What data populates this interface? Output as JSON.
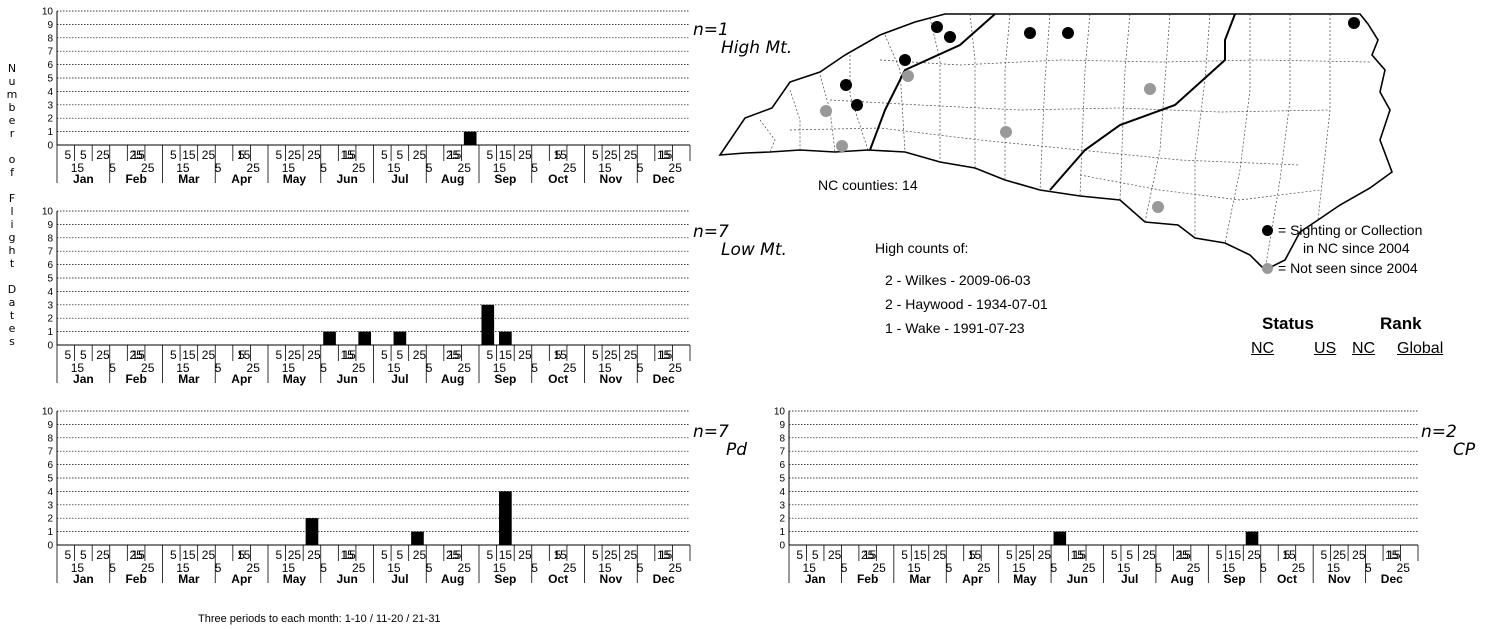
{
  "y_axis_title_letters": [
    "N",
    "u",
    "m",
    "b",
    "e",
    "r",
    "",
    "o",
    "f",
    "",
    "F",
    "l",
    "i",
    "g",
    "h",
    "t",
    "",
    "D",
    "a",
    "t",
    "e",
    "s"
  ],
  "footnote": "Three periods to each month: 1-10 / 11-20 / 21-31",
  "colors": {
    "bar": "#000000",
    "recent_dot": "#000000",
    "old_dot": "#999999",
    "grid": "#000000"
  },
  "tick_row1": [
    "5",
    "25",
    "15",
    "5",
    "25",
    "15",
    "5",
    "25",
    "15",
    "5",
    "25",
    "15",
    "5",
    "25",
    "15",
    "5",
    "25",
    "15"
  ],
  "tick_row2": [
    "15",
    "5",
    "25",
    "15",
    "5",
    "25",
    "15",
    "5",
    "25",
    "15",
    "5",
    "25",
    "15",
    "5",
    "25",
    "15",
    "5",
    "25"
  ],
  "chart_data": [
    {
      "type": "bar",
      "region": "High Mt.",
      "n_label": "n=1",
      "ylim": [
        0,
        10
      ],
      "y_ticks": [
        "0",
        "1",
        "2",
        "3",
        "4",
        "5",
        "6",
        "7",
        "8",
        "9",
        "10"
      ],
      "months": [
        "Jan",
        "Feb",
        "Mar",
        "Apr",
        "May",
        "Jun",
        "Jul",
        "Aug",
        "Sep",
        "Oct",
        "Nov",
        "Dec"
      ],
      "values": [
        0,
        0,
        0,
        0,
        0,
        0,
        0,
        0,
        0,
        0,
        0,
        0,
        0,
        0,
        0,
        0,
        0,
        0,
        0,
        0,
        0,
        0,
        0,
        1,
        0,
        0,
        0,
        0,
        0,
        0,
        0,
        0,
        0,
        0,
        0,
        0
      ]
    },
    {
      "type": "bar",
      "region": "Low Mt.",
      "n_label": "n=7",
      "ylim": [
        0,
        10
      ],
      "y_ticks": [
        "0",
        "1",
        "2",
        "3",
        "4",
        "5",
        "6",
        "7",
        "8",
        "9",
        "10"
      ],
      "months": [
        "Jan",
        "Feb",
        "Mar",
        "Apr",
        "May",
        "Jun",
        "Jul",
        "Aug",
        "Sep",
        "Oct",
        "Nov",
        "Dec"
      ],
      "values": [
        0,
        0,
        0,
        0,
        0,
        0,
        0,
        0,
        0,
        0,
        0,
        0,
        0,
        0,
        0,
        1,
        0,
        1,
        0,
        1,
        0,
        0,
        0,
        0,
        3,
        1,
        0,
        0,
        0,
        0,
        0,
        0,
        0,
        0,
        0,
        0
      ]
    },
    {
      "type": "bar",
      "region": "Pd",
      "n_label": "n=7",
      "ylim": [
        0,
        10
      ],
      "y_ticks": [
        "0",
        "1",
        "2",
        "3",
        "4",
        "5",
        "6",
        "7",
        "8",
        "9",
        "10"
      ],
      "months": [
        "Jan",
        "Feb",
        "Mar",
        "Apr",
        "May",
        "Jun",
        "Jul",
        "Aug",
        "Sep",
        "Oct",
        "Nov",
        "Dec"
      ],
      "values": [
        0,
        0,
        0,
        0,
        0,
        0,
        0,
        0,
        0,
        0,
        0,
        0,
        0,
        0,
        2,
        0,
        0,
        0,
        0,
        0,
        1,
        0,
        0,
        0,
        0,
        4,
        0,
        0,
        0,
        0,
        0,
        0,
        0,
        0,
        0,
        0
      ]
    },
    {
      "type": "bar",
      "region": "CP",
      "n_label": "n=2",
      "ylim": [
        0,
        10
      ],
      "y_ticks": [
        "0",
        "1",
        "2",
        "3",
        "4",
        "5",
        "6",
        "7",
        "8",
        "9",
        "10"
      ],
      "months": [
        "Jan",
        "Feb",
        "Mar",
        "Apr",
        "May",
        "Jun",
        "Jul",
        "Aug",
        "Sep",
        "Oct",
        "Nov",
        "Dec"
      ],
      "values": [
        0,
        0,
        0,
        0,
        0,
        0,
        0,
        0,
        0,
        0,
        0,
        0,
        0,
        0,
        0,
        1,
        0,
        0,
        0,
        0,
        0,
        0,
        0,
        0,
        0,
        0,
        1,
        0,
        0,
        0,
        0,
        0,
        0,
        0,
        0,
        0
      ]
    }
  ],
  "map": {
    "counties_label": "NC counties: 14",
    "legend": {
      "recent_line1": "= Sighting or Collection",
      "recent_line2": "in NC since 2004",
      "old": "= Not seen since 2004"
    }
  },
  "high_counts": {
    "title": "High counts of:",
    "rows": [
      "2 - Wilkes - 2009-06-03",
      "2 - Haywood - 1934-07-01",
      "1 - Wake - 1991-07-23"
    ]
  },
  "status": {
    "status_head": "Status",
    "rank_head": "Rank",
    "status_nc": "NC",
    "status_us": "US",
    "rank_nc": "NC",
    "rank_global": "Global"
  }
}
